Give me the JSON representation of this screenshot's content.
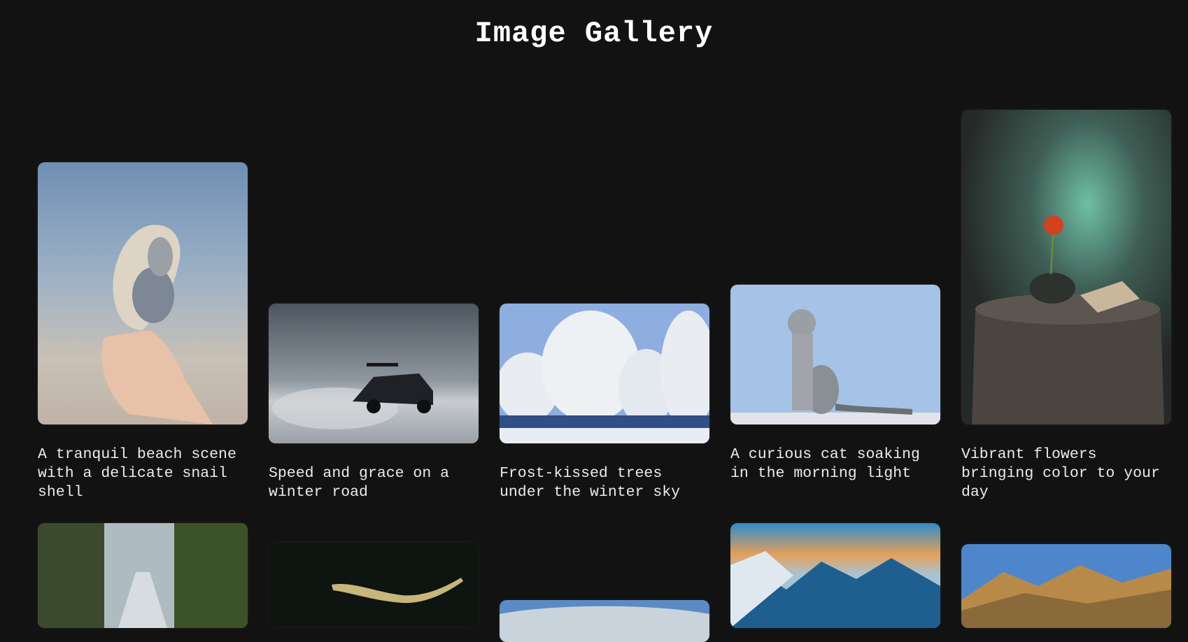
{
  "page": {
    "title": "Image Gallery"
  },
  "gallery": {
    "items": [
      {
        "caption": "A tranquil beach scene with a delicate snail shell",
        "icon": "shell-photo"
      },
      {
        "caption": "Speed and grace on a winter road",
        "icon": "car-photo"
      },
      {
        "caption": "Frost-kissed trees under the winter sky",
        "icon": "trees-photo"
      },
      {
        "caption": "A curious cat soaking in the morning light",
        "icon": "cat-photo"
      },
      {
        "caption": "Vibrant flowers bringing color to your day",
        "icon": "flower-photo"
      },
      {
        "caption": "",
        "icon": "forest-road-photo"
      },
      {
        "caption": "",
        "icon": "lizard-photo"
      },
      {
        "caption": "",
        "icon": "landscape-photo"
      },
      {
        "caption": "",
        "icon": "mountain-sunset-photo"
      },
      {
        "caption": "",
        "icon": "golden-hills-photo"
      }
    ]
  }
}
